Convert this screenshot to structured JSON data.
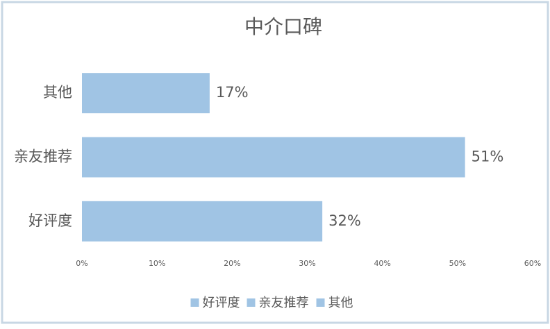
{
  "chart_data": {
    "type": "bar",
    "orientation": "horizontal",
    "title": "中介口碑",
    "categories": [
      "好评度",
      "亲友推荐",
      "其他"
    ],
    "values": [
      32,
      51,
      17
    ],
    "value_labels": [
      "32%",
      "51%",
      "17%"
    ],
    "color": "#a0c4e4",
    "xlim": [
      0,
      60
    ],
    "xticks": [
      {
        "value": 0,
        "label": "0%"
      },
      {
        "value": 10,
        "label": "10%"
      },
      {
        "value": 20,
        "label": "20%"
      },
      {
        "value": 30,
        "label": "30%"
      },
      {
        "value": 40,
        "label": "40%"
      },
      {
        "value": 50,
        "label": "50%"
      },
      {
        "value": 60,
        "label": "60%"
      }
    ],
    "grid": false,
    "legend": "bottom"
  }
}
